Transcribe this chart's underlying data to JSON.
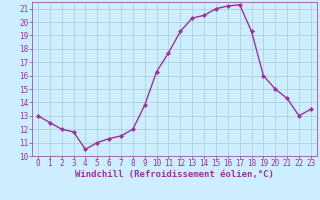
{
  "x": [
    0,
    1,
    2,
    3,
    4,
    5,
    6,
    7,
    8,
    9,
    10,
    11,
    12,
    13,
    14,
    15,
    16,
    17,
    18,
    19,
    20,
    21,
    22,
    23
  ],
  "y": [
    13.0,
    12.5,
    12.0,
    11.8,
    10.5,
    11.0,
    11.3,
    11.5,
    12.0,
    13.8,
    16.3,
    17.7,
    19.3,
    20.3,
    20.5,
    21.0,
    21.2,
    21.3,
    19.3,
    16.0,
    15.0,
    14.3,
    13.0,
    13.5
  ],
  "line_color": "#993399",
  "marker": "D",
  "marker_size": 2.0,
  "bg_color": "#cceeff",
  "grid_color": "#aacccc",
  "xlabel": "Windchill (Refroidissement éolien,°C)",
  "xlabel_color": "#993399",
  "tick_color": "#993399",
  "ylim": [
    10,
    21.5
  ],
  "xlim": [
    -0.5,
    23.5
  ],
  "yticks": [
    10,
    11,
    12,
    13,
    14,
    15,
    16,
    17,
    18,
    19,
    20,
    21
  ],
  "xticks": [
    0,
    1,
    2,
    3,
    4,
    5,
    6,
    7,
    8,
    9,
    10,
    11,
    12,
    13,
    14,
    15,
    16,
    17,
    18,
    19,
    20,
    21,
    22,
    23
  ],
  "tick_fontsize": 5.5,
  "xlabel_fontsize": 6.5,
  "linewidth": 1.0
}
